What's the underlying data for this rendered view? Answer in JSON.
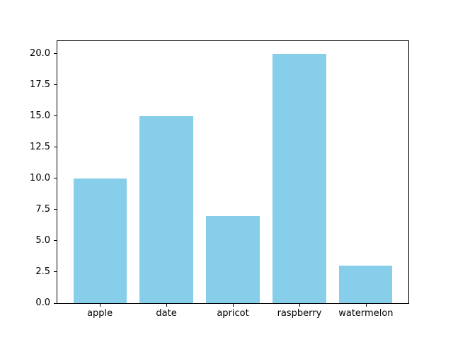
{
  "chart_data": {
    "type": "bar",
    "categories": [
      "apple",
      "date",
      "apricot",
      "raspberry",
      "watermelon"
    ],
    "values": [
      10,
      15,
      7,
      20,
      3
    ],
    "title": "",
    "xlabel": "",
    "ylabel": "",
    "ylim": [
      0,
      21
    ],
    "xlim": [
      -0.64,
      4.64
    ],
    "bar_width": 0.8,
    "yticks": [
      0.0,
      2.5,
      5.0,
      7.5,
      10.0,
      12.5,
      15.0,
      17.5,
      20.0
    ],
    "ytick_labels": [
      "0.0",
      "2.5",
      "5.0",
      "7.5",
      "10.0",
      "12.5",
      "15.0",
      "17.5",
      "20.0"
    ],
    "grid": false,
    "legend": null,
    "bar_color": "#87ceeb"
  },
  "colors": {
    "background": "#ffffff",
    "axis": "#000000",
    "bar": "#87ceeb"
  }
}
